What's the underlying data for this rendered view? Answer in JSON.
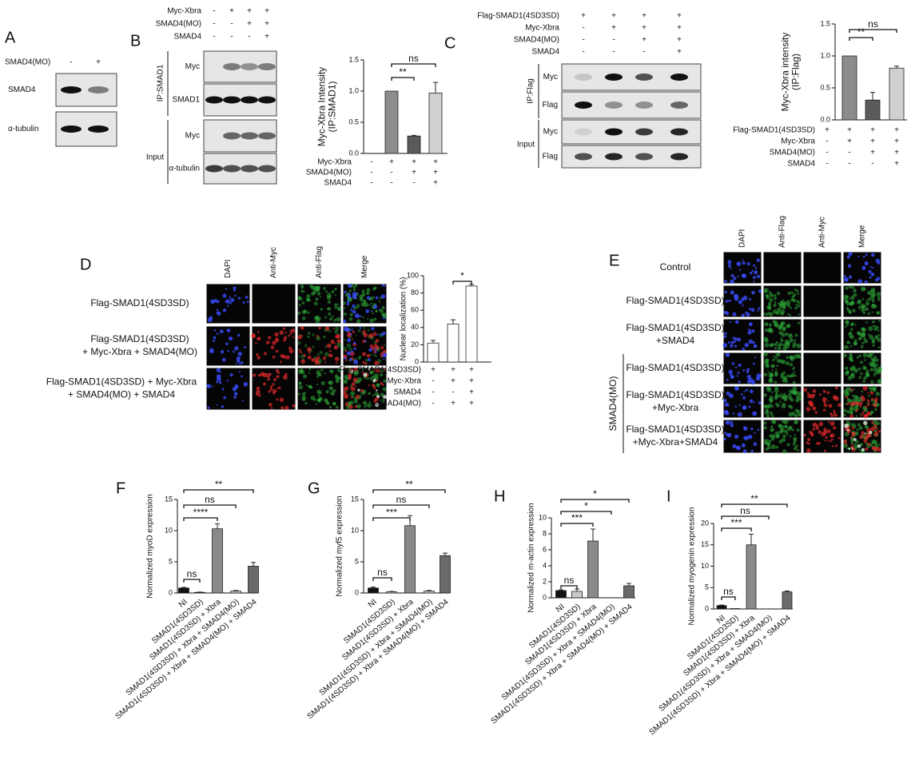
{
  "figure": {
    "panel_a": {
      "label": "A",
      "condition": "SMAD4(MO)",
      "signs": [
        "-",
        "+"
      ],
      "rows": [
        "SMAD4",
        "α-tubulin"
      ]
    },
    "panel_b": {
      "label": "B",
      "conditions": [
        {
          "name": "Myc-Xbra",
          "signs": [
            "-",
            "+",
            "+",
            "+"
          ]
        },
        {
          "name": "SMAD4(MO)",
          "signs": [
            "-",
            "-",
            "+",
            "+"
          ]
        },
        {
          "name": "SMAD4",
          "signs": [
            "-",
            "-",
            "-",
            "+"
          ]
        }
      ],
      "groups": [
        {
          "name": "IP:SMAD1",
          "rows": [
            "Myc",
            "SMAD1"
          ]
        },
        {
          "name": "Input",
          "rows": [
            "Myc",
            "α-tubulin"
          ]
        }
      ]
    },
    "panel_c": {
      "label": "C",
      "conditions": [
        {
          "name": "Flag-SMAD1(4SD3SD)",
          "signs": [
            "+",
            "+",
            "+",
            "+"
          ]
        },
        {
          "name": "Myc-Xbra",
          "signs": [
            "-",
            "+",
            "+",
            "+"
          ]
        },
        {
          "name": "SMAD4(MO)",
          "signs": [
            "-",
            "-",
            "+",
            "+"
          ]
        },
        {
          "name": "SMAD4",
          "signs": [
            "-",
            "-",
            "-",
            "+"
          ]
        }
      ],
      "groups": [
        {
          "name": "IP:Flag",
          "rows": [
            "Myc",
            "Flag"
          ]
        },
        {
          "name": "Input",
          "rows": [
            "Myc",
            "Flag"
          ]
        }
      ]
    },
    "panel_d": {
      "label": "D",
      "columns": [
        "DAPI",
        "Anti-Myc",
        "Anti-Flag",
        "Merge"
      ],
      "rows": [
        [
          "Flag-SMAD1(4SD3SD)"
        ],
        [
          "Flag-SMAD1(4SD3SD)",
          "+ Myc-Xbra + SMAD4(MO)"
        ],
        [
          "Flag-SMAD1(4SD3SD) + Myc-Xbra",
          "+ SMAD4(MO) + SMAD4"
        ]
      ]
    },
    "panel_e": {
      "label": "E",
      "columns": [
        "DAPI",
        "Anti-Flag",
        "Anti-Myc",
        "Merge"
      ],
      "rows": [
        [
          "Control"
        ],
        [
          "Flag-SMAD1(4SD3SD)"
        ],
        [
          "Flag-SMAD1(4SD3SD)",
          "+SMAD4"
        ],
        [
          "Flag-SMAD1(4SD3SD)"
        ],
        [
          "Flag-SMAD1(4SD3SD)",
          "+Myc-Xbra"
        ],
        [
          "Flag-SMAD1(4SD3SD)",
          "+Myc-Xbra+SMAD4"
        ]
      ],
      "group": "SMAD4(MO)"
    }
  },
  "chart_data": [
    {
      "type": "bar",
      "y_label": [
        "Myc-Xbra Intensity",
        "(IP:SMAD1)"
      ],
      "values": [
        null,
        1.0,
        0.28,
        0.97
      ],
      "errors": [
        null,
        null,
        0.01,
        0.17
      ],
      "colors": [
        null,
        "#8c8c8c",
        "#5a5a5a",
        "#d0d0d0"
      ],
      "ylim": [
        0,
        1.5
      ],
      "yticks": [
        {
          "value": 0,
          "label": "0.0"
        },
        {
          "value": 0.5,
          "label": "0.5"
        },
        {
          "value": 1,
          "label": "1.0"
        },
        {
          "value": 1.5,
          "label": "1.5"
        }
      ],
      "conditions": [
        {
          "name": "Myc-Xbra",
          "signs": [
            "-",
            "+",
            "+",
            "+"
          ]
        },
        {
          "name": "SMAD4(MO)",
          "signs": [
            "-",
            "-",
            "+",
            "+"
          ]
        },
        {
          "name": "SMAD4",
          "signs": [
            "-",
            "-",
            "-",
            "+"
          ]
        }
      ],
      "annotations": [
        "**",
        "ns"
      ]
    },
    {
      "type": "bar",
      "y_label": [
        "Myc-Xbra intensity",
        "(IP:Flag)"
      ],
      "values": [
        null,
        1.0,
        0.31,
        0.81
      ],
      "errors": [
        null,
        null,
        0.12,
        0.03
      ],
      "colors": [
        null,
        "#8c8c8c",
        "#5a5a5a",
        "#d0d0d0"
      ],
      "ylim": [
        0,
        1.5
      ],
      "yticks": [
        {
          "value": 0,
          "label": "0.0"
        },
        {
          "value": 0.5,
          "label": "0.5"
        },
        {
          "value": 1,
          "label": "1.0"
        },
        {
          "value": 1.5,
          "label": "1.5"
        }
      ],
      "conditions": [
        {
          "name": "Flag-SMAD1(4SD3SD)",
          "signs": [
            "+",
            "+",
            "+",
            "+"
          ]
        },
        {
          "name": "Myc-Xbra",
          "signs": [
            "-",
            "+",
            "+",
            "+"
          ]
        },
        {
          "name": "SMAD4(MO)",
          "signs": [
            "-",
            "-",
            "+",
            "+"
          ]
        },
        {
          "name": "SMAD4",
          "signs": [
            "-",
            "-",
            "-",
            "+"
          ]
        }
      ],
      "annotations": [
        "**",
        "ns"
      ]
    },
    {
      "type": "bar",
      "y_label": [
        "Nuclear localization (%)"
      ],
      "values": [
        22,
        44,
        88
      ],
      "errors": [
        3,
        5,
        2
      ],
      "colors": [
        "#ffffff",
        "#ffffff",
        "#ffffff"
      ],
      "ylim": [
        0,
        100
      ],
      "yticks": [
        0,
        20,
        40,
        60,
        80,
        100
      ],
      "conditions": [
        {
          "name": "Flag-SMAD1(4SD3SD)",
          "signs": [
            "+",
            "+",
            "+"
          ]
        },
        {
          "name": "Myc-Xbra",
          "signs": [
            "-",
            "+",
            "+"
          ]
        },
        {
          "name": "SMAD4",
          "signs": [
            "-",
            "-",
            "+"
          ]
        },
        {
          "name": "SMAD4(MO)",
          "signs": [
            "-",
            "+",
            "+"
          ]
        }
      ],
      "annotations": [
        "*"
      ]
    },
    {
      "type": "bar",
      "label": "F",
      "y_label": [
        "Normalized myoD expression"
      ],
      "categories": [
        "NI",
        "SMAD1(4SD3SD)",
        "SMAD1(4SD3SD) + Xbra",
        "SMAD1(4SD3SD) + Xbra + SMAD4(MO)",
        "SMAD1(4SD3SD) + Xbra + SMAD4(MO) + SMAD4"
      ],
      "values": [
        0.8,
        0.1,
        10.3,
        0.3,
        4.3
      ],
      "errors": [
        0.1,
        0.05,
        0.8,
        0.1,
        0.6
      ],
      "colors": [
        "#111111",
        "#c8c8c8",
        "#8a8a8a",
        "#c8c8c8",
        "#6a6a6a"
      ],
      "ylim": [
        0,
        15
      ],
      "yticks": [
        0,
        5,
        10,
        15
      ],
      "annotations": [
        "ns",
        "****",
        "ns",
        "**"
      ]
    },
    {
      "type": "bar",
      "label": "G",
      "y_label": [
        "Normalized myf5 expression"
      ],
      "categories": [
        "NI",
        "SMAD1(4SD3SD)",
        "SMAD1(4SD3SD) + Xbra",
        "SMAD1(4SD3SD) + Xbra + SMAD4(MO)",
        "SMAD1(4SD3SD) + Xbra + SMAD4(MO) + SMAD4"
      ],
      "values": [
        0.8,
        0.2,
        10.8,
        0.3,
        6.0
      ],
      "errors": [
        0.15,
        0.05,
        1.6,
        0.1,
        0.4
      ],
      "colors": [
        "#111111",
        "#c8c8c8",
        "#8a8a8a",
        "#c8c8c8",
        "#6a6a6a"
      ],
      "ylim": [
        0,
        15
      ],
      "yticks": [
        0,
        5,
        10,
        15
      ],
      "annotations": [
        "ns",
        "***",
        "ns",
        "**"
      ]
    },
    {
      "type": "bar",
      "label": "H",
      "y_label": [
        "Normalized m-actin expression"
      ],
      "categories": [
        "NI",
        "SMAD1(4SD3SD)",
        "SMAD1(4SD3SD) + Xbra",
        "SMAD1(4SD3SD) + Xbra + SMAD4(MO)",
        "SMAD1(4SD3SD) + Xbra + SMAD4(MO) + SMAD4"
      ],
      "values": [
        0.9,
        0.8,
        7.1,
        0,
        1.5
      ],
      "errors": [
        0.1,
        0.3,
        1.5,
        null,
        0.3
      ],
      "colors": [
        "#111111",
        "#c8c8c8",
        "#8a8a8a",
        "#c8c8c8",
        "#6a6a6a"
      ],
      "ylim": [
        0,
        10
      ],
      "yticks": [
        0,
        2,
        4,
        6,
        8,
        10
      ],
      "annotations": [
        "ns",
        "***",
        "*",
        "*"
      ]
    },
    {
      "type": "bar",
      "label": "I",
      "y_label": [
        "Normalized myogenin expression"
      ],
      "categories": [
        "NI",
        "SMAD1(4SD3SD)",
        "SMAD1(4SD3SD) + Xbra",
        "SMAD1(4SD3SD) + Xbra + SMAD4(MO)",
        "SMAD1(4SD3SD) + Xbra + SMAD4(MO) + SMAD4"
      ],
      "values": [
        0.8,
        0.1,
        15,
        0,
        4.0
      ],
      "errors": [
        0.1,
        null,
        2.5,
        null,
        0.2
      ],
      "colors": [
        "#111111",
        "#c8c8c8",
        "#8a8a8a",
        "#c8c8c8",
        "#6a6a6a"
      ],
      "ylim": [
        0,
        20
      ],
      "yticks": [
        0,
        5,
        10,
        15,
        20
      ],
      "annotations": [
        "ns",
        "***",
        "ns",
        "**"
      ]
    }
  ]
}
